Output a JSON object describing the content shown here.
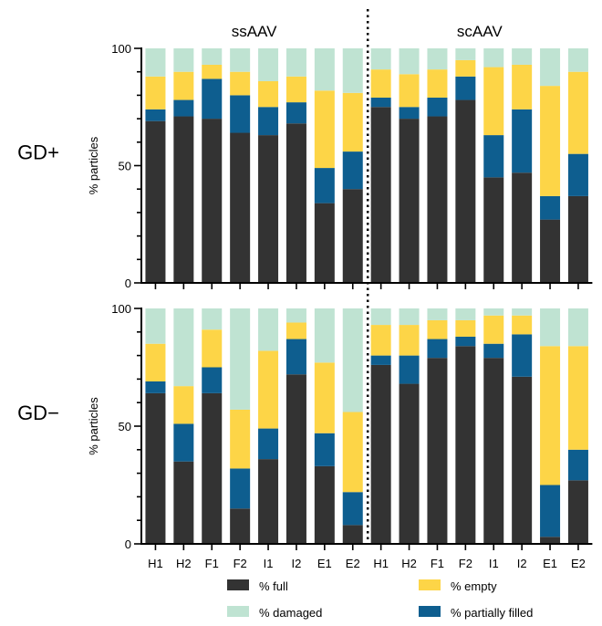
{
  "chart_data": {
    "type": "bar",
    "stacked": true,
    "ylim": [
      0,
      100
    ],
    "yticks": [
      0,
      50,
      100
    ],
    "ylabel": "% particles",
    "categories": [
      "H1",
      "H2",
      "F1",
      "F2",
      "I1",
      "I2",
      "E1",
      "E2",
      "H1",
      "H2",
      "F1",
      "F2",
      "I1",
      "I2",
      "E1",
      "E2"
    ],
    "groups": [
      "ssAAV",
      "scAAV"
    ],
    "series_meta": [
      {
        "key": "full",
        "name": "% full",
        "color": "#333333"
      },
      {
        "key": "partial",
        "name": "% partially filled",
        "color": "#0e5e8f"
      },
      {
        "key": "empty",
        "name": "% empty",
        "color": "#fdd547"
      },
      {
        "key": "damaged",
        "name": "% damaged",
        "color": "#bfe3d2"
      }
    ],
    "panels": [
      {
        "label": "GD+",
        "series": [
          {
            "name": "% full",
            "values": [
              69,
              71,
              70,
              64,
              63,
              68,
              34,
              40,
              75,
              70,
              71,
              78,
              45,
              47,
              27,
              37
            ]
          },
          {
            "name": "% partially filled",
            "values": [
              5,
              7,
              17,
              16,
              12,
              9,
              15,
              16,
              4,
              5,
              8,
              10,
              18,
              27,
              10,
              18
            ]
          },
          {
            "name": "% empty",
            "values": [
              14,
              12,
              6,
              10,
              11,
              11,
              33,
              25,
              12,
              14,
              12,
              7,
              29,
              19,
              47,
              35
            ]
          },
          {
            "name": "% damaged",
            "values": [
              12,
              10,
              7,
              10,
              14,
              12,
              18,
              19,
              9,
              11,
              9,
              5,
              8,
              7,
              16,
              10
            ]
          }
        ]
      },
      {
        "label": "GD−",
        "series": [
          {
            "name": "% full",
            "values": [
              64,
              35,
              64,
              15,
              36,
              72,
              33,
              8,
              76,
              68,
              79,
              84,
              79,
              71,
              3,
              27
            ]
          },
          {
            "name": "% partially filled",
            "values": [
              5,
              16,
              11,
              17,
              13,
              15,
              14,
              14,
              4,
              12,
              8,
              4,
              6,
              18,
              22,
              13
            ]
          },
          {
            "name": "% empty",
            "values": [
              16,
              16,
              16,
              25,
              33,
              7,
              30,
              34,
              13,
              13,
              8,
              7,
              12,
              8,
              59,
              44
            ]
          },
          {
            "name": "% damaged",
            "values": [
              15,
              33,
              9,
              43,
              18,
              6,
              23,
              44,
              7,
              7,
              5,
              5,
              3,
              3,
              16,
              16
            ]
          }
        ]
      }
    ],
    "legend": {
      "placement": "bottom",
      "entries": [
        "% full",
        "% damaged",
        "% empty",
        "% partially filled"
      ]
    }
  }
}
